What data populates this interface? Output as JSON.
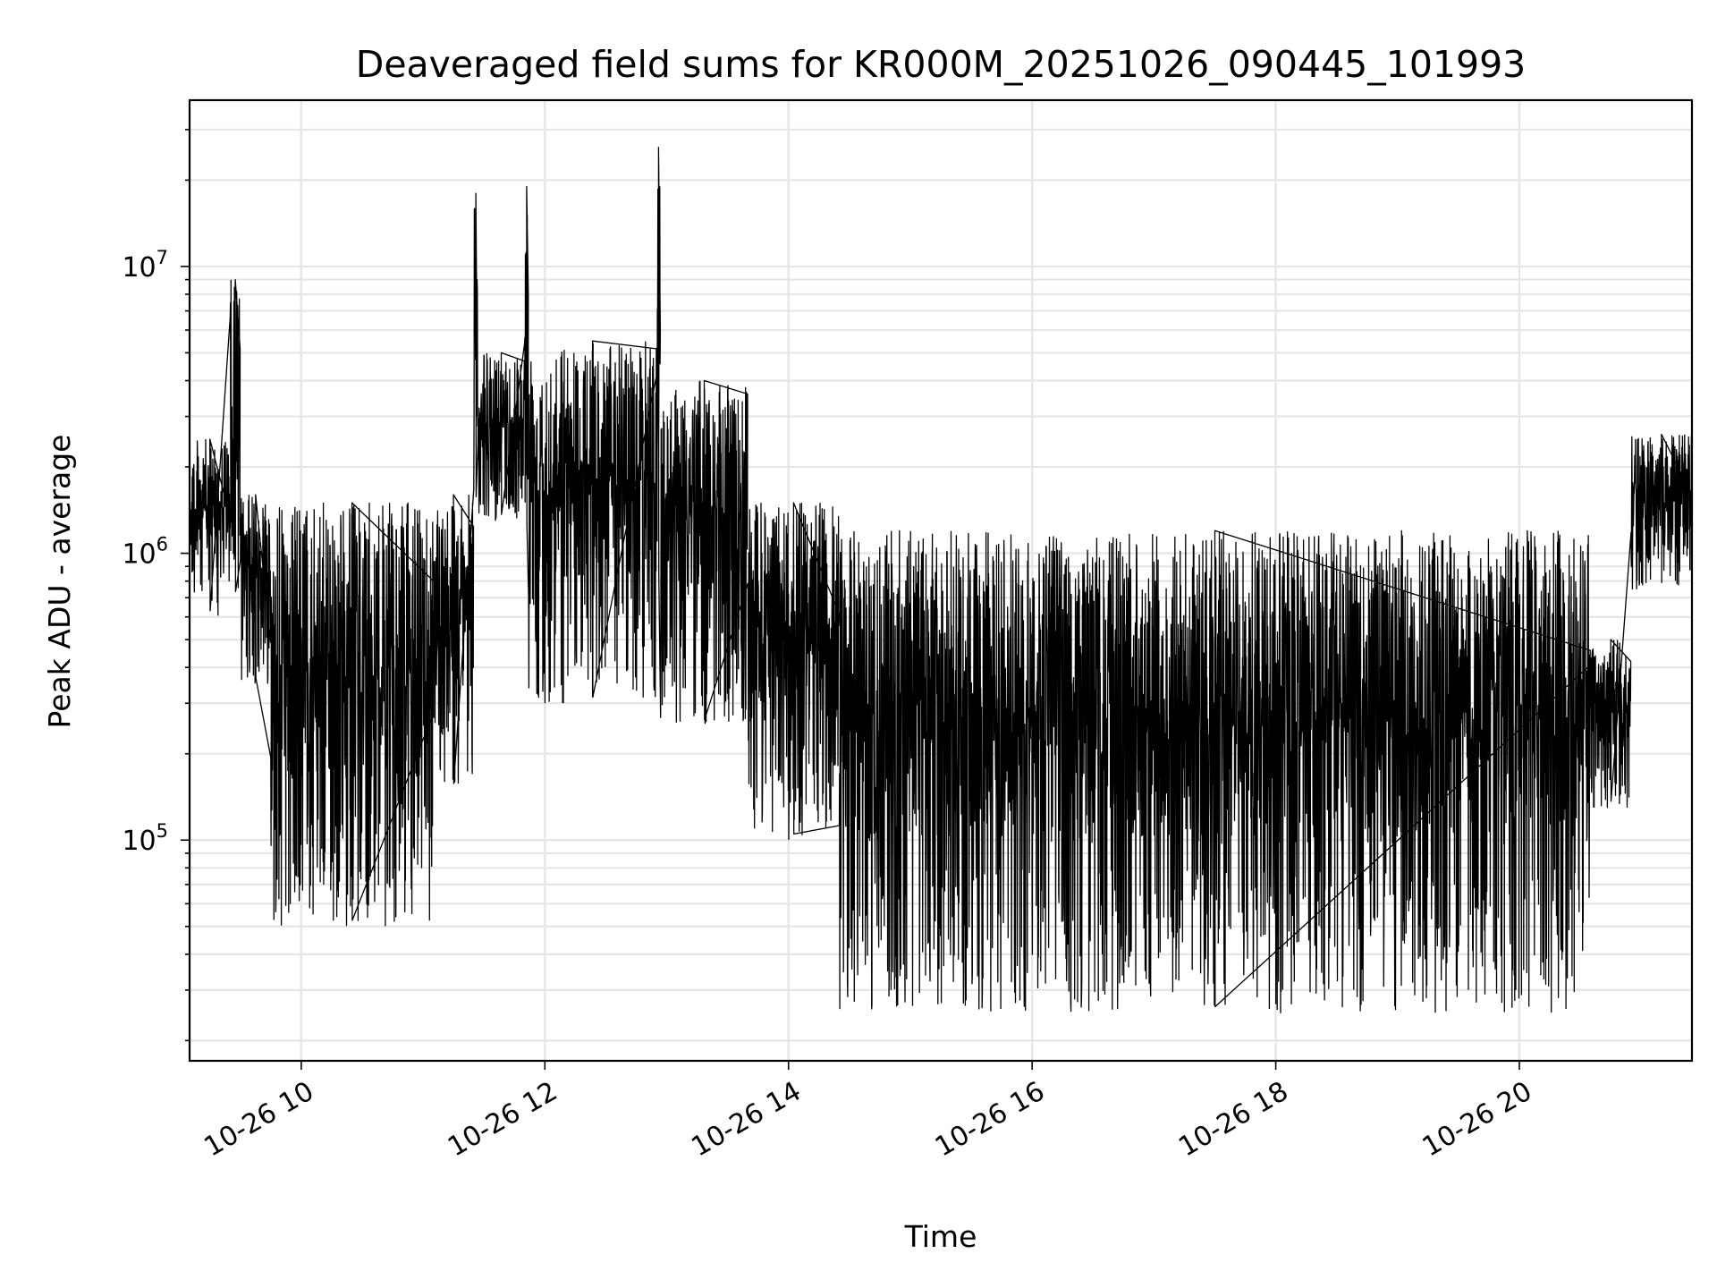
{
  "chart_data": {
    "type": "line",
    "title": "Deaveraged field sums for KR000M_20251026_090445_101993",
    "xlabel": "Time",
    "ylabel": "Peak ADU - average",
    "x_axis": {
      "kind": "time",
      "start": "2025-10-26T09:05",
      "end": "2025-10-26T21:25",
      "ticks": [
        {
          "time": "2025-10-26T10:00",
          "label": "10-26 10"
        },
        {
          "time": "2025-10-26T12:00",
          "label": "10-26 12"
        },
        {
          "time": "2025-10-26T14:00",
          "label": "10-26 14"
        },
        {
          "time": "2025-10-26T16:00",
          "label": "10-26 16"
        },
        {
          "time": "2025-10-26T18:00",
          "label": "10-26 18"
        },
        {
          "time": "2025-10-26T20:00",
          "label": "10-26 20"
        }
      ]
    },
    "y_axis": {
      "scale": "log",
      "ylim": [
        17000,
        38000000
      ],
      "ticks": [
        {
          "value": 100000,
          "base": "10",
          "exp": "5"
        },
        {
          "value": 1000000,
          "base": "10",
          "exp": "6"
        },
        {
          "value": 10000000,
          "base": "10",
          "exp": "7"
        }
      ]
    },
    "grid": true,
    "line_color": "#000000",
    "grid_color": "#e6e6e6",
    "series": [
      {
        "segments": [
          {
            "start": "2025-10-26T09:05",
            "end": "2025-10-26T09:25",
            "low": 600000,
            "high": 2500000
          },
          {
            "start": "2025-10-26T09:25",
            "end": "2025-10-26T09:30",
            "low": 700000,
            "high": 9000000
          },
          {
            "start": "2025-10-26T09:30",
            "end": "2025-10-26T09:45",
            "low": 350000,
            "high": 1600000
          },
          {
            "start": "2025-10-26T09:45",
            "end": "2025-10-26T11:05",
            "low": 50000,
            "high": 1500000
          },
          {
            "start": "2025-10-26T11:05",
            "end": "2025-10-26T11:25",
            "low": 150000,
            "high": 1600000
          },
          {
            "start": "2025-10-26T11:25",
            "end": "2025-10-26T11:27",
            "low": 1500000,
            "high": 18000000
          },
          {
            "start": "2025-10-26T11:27",
            "end": "2025-10-26T11:50",
            "low": 1300000,
            "high": 5000000
          },
          {
            "start": "2025-10-26T11:50",
            "end": "2025-10-26T11:52",
            "low": 1200000,
            "high": 19000000
          },
          {
            "start": "2025-10-26T11:52",
            "end": "2025-10-26T12:55",
            "low": 300000,
            "high": 5500000
          },
          {
            "start": "2025-10-26T12:55",
            "end": "2025-10-26T12:57",
            "low": 800000,
            "high": 26000000
          },
          {
            "start": "2025-10-26T12:57",
            "end": "2025-10-26T13:40",
            "low": 250000,
            "high": 4000000
          },
          {
            "start": "2025-10-26T13:40",
            "end": "2025-10-26T14:25",
            "low": 100000,
            "high": 1500000
          },
          {
            "start": "2025-10-26T14:25",
            "end": "2025-10-26T20:35",
            "low": 25000,
            "high": 1200000
          },
          {
            "start": "2025-10-26T20:35",
            "end": "2025-10-26T20:55",
            "low": 130000,
            "high": 500000
          },
          {
            "start": "2025-10-26T20:55",
            "end": "2025-10-26T21:25",
            "low": 750000,
            "high": 2600000
          }
        ]
      }
    ]
  }
}
